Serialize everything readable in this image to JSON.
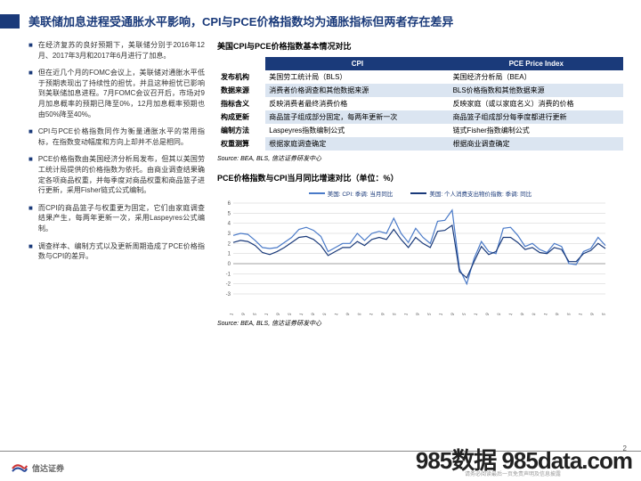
{
  "title": "美联储加息进程受通胀水平影响，CPI与PCE价格指数均为通胀指标但两者存在差异",
  "bullets": [
    "在经济复苏的良好预期下，美联储分别于2016年12月、2017年3月和2017年6月进行了加息。",
    "但在近几个月的FOMC会议上，美联储对通胀水平低于预期表现出了持续性的担忧，并且这种担忧已影响到美联储加息进程。7月FOMC会议召开后，市场对9月加息概率的预期已降至0%，12月加息概率预期也由50%降至40%。",
    "CPI与PCE价格指数同作为衡量通胀水平的常用指标，在指数变动幅度和方向上却并不总是相同。",
    "PCE价格指数由美国经济分析局发布，但其以美国劳工统计局提供的价格指数为依托。由商业调查结果确定各项商品权重，并每季度对商品权重和商品篮子进行更新，采用Fisher链式公式编制。",
    "而CPI的商品篮子与权重更为固定，它们由家庭调查结果产生，每两年更新一次，采用Laspeyres公式编制。",
    "调查样本、编制方式以及更新周期造成了PCE价格指数与CPI的差异。"
  ],
  "table_section": {
    "title": "美国CPI与PCE价格指数基本情况对比",
    "headers": [
      "",
      "CPI",
      "PCE Price Index"
    ],
    "rows": [
      {
        "label": "发布机构",
        "c1": "美国劳工统计局（BLS）",
        "c2": "美国经济分析局（BEA）"
      },
      {
        "label": "数据来源",
        "c1": "消费者价格调查和其他数据来源",
        "c2": "BLS价格指数和其他数据来源"
      },
      {
        "label": "指标含义",
        "c1": "反映消费者最终消费价格",
        "c2": "反映家庭（或以家庭名义）消费的价格"
      },
      {
        "label": "构成更新",
        "c1": "商品篮子组成部分固定，每两年更新一次",
        "c2": "商品篮子组成部分每季度都进行更新"
      },
      {
        "label": "编制方法",
        "c1": "Laspeyres指数编制公式",
        "c2": "链式Fisher指数编制公式"
      },
      {
        "label": "权重测算",
        "c1": "根据家庭调查确定",
        "c2": "根据商业调查确定"
      }
    ],
    "source": "Source: BEA, BLS, 信达证券研发中心"
  },
  "chart_section": {
    "title": "PCE价格指数与CPI当月同比增速对比（单位：%）",
    "legend": [
      {
        "label": "美国: CPI: 季调: 当月同比",
        "color": "#4a7ac8"
      },
      {
        "label": "美国: 个人消费支出物价指数: 季调: 同比",
        "color": "#1a3a7a"
      }
    ],
    "y_ticks": [
      6,
      5,
      4,
      3,
      2,
      1,
      0,
      -1,
      -2,
      -3
    ],
    "y_min": -3,
    "y_max": 6,
    "x_labels": [
      "1996-01",
      "1996-09",
      "1997-05",
      "1998-01",
      "1998-09",
      "1999-05",
      "2000-01",
      "2000-09",
      "2001-05",
      "2002-01",
      "2002-09",
      "2003-05",
      "2004-01",
      "2004-09",
      "2005-05",
      "2006-01",
      "2006-09",
      "2007-05",
      "2008-01",
      "2008-09",
      "2009-05",
      "2010-01",
      "2010-09",
      "2011-05",
      "2012-01",
      "2012-09",
      "2013-05",
      "2014-01",
      "2014-09",
      "2015-05",
      "2016-01",
      "2016-09",
      "2017-05"
    ],
    "series": [
      {
        "color": "#4a7ac8",
        "width": 1.2,
        "data": [
          2.8,
          3.0,
          2.9,
          2.3,
          1.6,
          1.5,
          1.6,
          2.1,
          2.6,
          3.4,
          3.6,
          3.3,
          2.7,
          1.2,
          1.6,
          2.0,
          2.0,
          3.0,
          2.3,
          3.0,
          3.2,
          3.0,
          4.5,
          3.0,
          2.1,
          3.5,
          2.6,
          2.0,
          4.2,
          4.3,
          5.3,
          -0.5,
          -2.0,
          0.5,
          2.2,
          1.2,
          1.0,
          3.5,
          3.6,
          2.8,
          1.7,
          2.0,
          1.4,
          1.1,
          2.0,
          1.7,
          0.0,
          -0.1,
          1.2,
          1.5,
          2.6,
          1.8
        ]
      },
      {
        "color": "#1a3a7a",
        "width": 1.2,
        "data": [
          2.1,
          2.3,
          2.2,
          1.8,
          1.1,
          0.9,
          1.2,
          1.6,
          2.1,
          2.6,
          2.7,
          2.4,
          1.8,
          0.8,
          1.2,
          1.6,
          1.6,
          2.2,
          1.8,
          2.4,
          2.6,
          2.4,
          3.4,
          2.4,
          1.6,
          2.6,
          2.0,
          1.6,
          3.2,
          3.3,
          3.8,
          -0.8,
          -1.4,
          0.2,
          1.7,
          0.9,
          1.2,
          2.6,
          2.6,
          2.1,
          1.4,
          1.6,
          1.1,
          1.0,
          1.6,
          1.4,
          0.2,
          0.2,
          1.0,
          1.3,
          2.0,
          1.5
        ]
      }
    ],
    "grid_color": "#ccc",
    "source": "Source: BEA, BLS, 信达证券研发中心"
  },
  "footer": {
    "logo_text": "信达证券",
    "page": "2",
    "watermark": "985数据 985data.com",
    "note": "请务必阅读最后一页免责声明及信息披露"
  }
}
